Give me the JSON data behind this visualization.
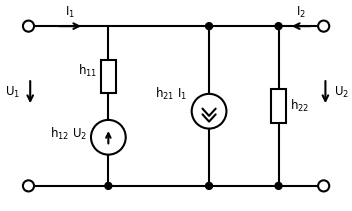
{
  "fig_width": 3.52,
  "fig_height": 2.11,
  "dpi": 100,
  "bg_color": "#ffffff",
  "line_color": "#000000",
  "line_width": 1.5,
  "labels": {
    "I1": "I$_1$",
    "I2": "I$_2$",
    "U1": "U$_1$",
    "U2": "U$_2$",
    "h11": "h$_{11}$",
    "h12U2": "h$_{12}$ U$_2$",
    "h21I1": "h$_{21}$ I$_1$",
    "h22": "h$_{22}$"
  },
  "fontsize": 8.5
}
